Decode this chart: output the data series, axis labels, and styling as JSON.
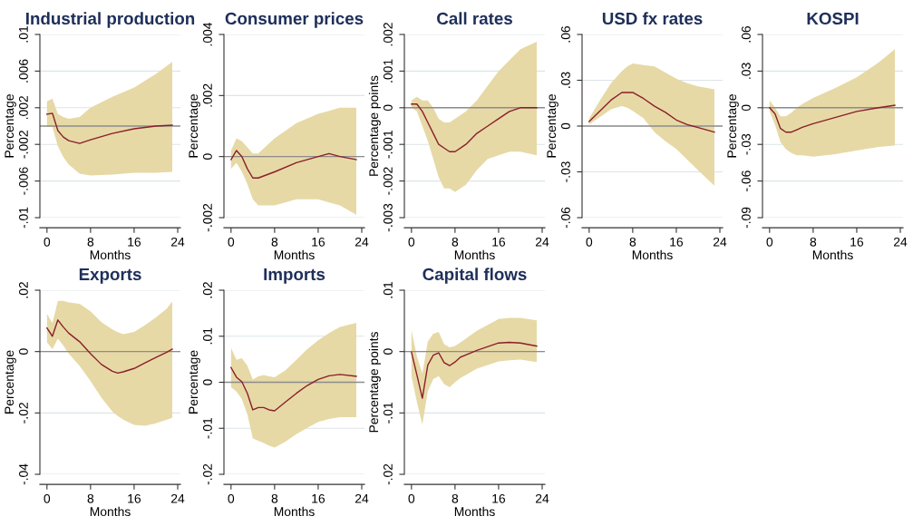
{
  "chart_data": [
    {
      "type": "line",
      "title": "Industrial production",
      "xlabel": "Months",
      "ylabel": "Percentage",
      "xlim": [
        -1.3,
        24.5
      ],
      "xticks": [
        0,
        8,
        16,
        24
      ],
      "ylim": [
        -0.01,
        0.01
      ],
      "yticks": [
        {
          "value": -0.01,
          "label": "-.01"
        },
        {
          "value": -0.006,
          "label": "-.006"
        },
        {
          "value": -0.002,
          "label": "-.002"
        },
        {
          "value": 0.002,
          "label": ".002"
        },
        {
          "value": 0.006,
          "label": ".006"
        },
        {
          "value": 0.01,
          "label": ".01"
        }
      ],
      "grid": "y",
      "ref_lines": [
        {
          "axis": "y",
          "value": 0,
          "color": "#8c8c8c"
        }
      ],
      "series": [
        {
          "color": "#8b1e2a",
          "x": [
            0,
            1,
            2,
            3,
            4,
            6,
            8,
            12,
            16,
            20,
            23
          ],
          "values": [
            0.0013,
            0.0014,
            -0.0005,
            -0.0012,
            -0.0016,
            -0.0019,
            -0.0015,
            -0.0008,
            -0.0003,
            0.0,
            0.0001
          ],
          "upper": [
            0.0027,
            0.003,
            0.0013,
            0.001,
            0.0008,
            0.001,
            0.002,
            0.0032,
            0.0042,
            0.0057,
            0.007
          ],
          "lower": [
            -0.0001,
            -0.0001,
            -0.0022,
            -0.0034,
            -0.0042,
            -0.0052,
            -0.0054,
            -0.0053,
            -0.0051,
            -0.0051,
            -0.005
          ]
        }
      ]
    },
    {
      "type": "line",
      "title": "Consumer prices",
      "xlabel": "Months",
      "ylabel": "Percentage",
      "xlim": [
        -1.3,
        24.5
      ],
      "xticks": [
        0,
        8,
        16,
        24
      ],
      "ylim": [
        -0.002,
        0.004
      ],
      "yticks": [
        {
          "value": -0.002,
          "label": "-.002"
        },
        {
          "value": 0,
          "label": "0"
        },
        {
          "value": 0.002,
          "label": ".002"
        },
        {
          "value": 0.004,
          "label": ".004"
        }
      ],
      "grid": "y",
      "ref_lines": [
        {
          "axis": "y",
          "value": 0,
          "color": "#8c8c8c"
        }
      ],
      "series": [
        {
          "color": "#8b1e2a",
          "x": [
            0,
            1,
            2,
            3,
            4,
            5,
            8,
            12,
            16,
            18,
            20,
            23
          ],
          "values": [
            -0.0001,
            0.0002,
            0.0,
            -0.0004,
            -0.0007,
            -0.0007,
            -0.0005,
            -0.0002,
            0.0,
            0.0001,
            0.0,
            -0.0001
          ],
          "upper": [
            0.0002,
            0.0006,
            0.0005,
            0.0003,
            0.0001,
            0.0001,
            0.0006,
            0.0011,
            0.0014,
            0.0015,
            0.0016,
            0.0016
          ],
          "lower": [
            -0.0004,
            -0.0002,
            -0.0005,
            -0.0009,
            -0.0014,
            -0.0016,
            -0.0016,
            -0.0014,
            -0.0014,
            -0.0015,
            -0.0016,
            -0.0019
          ]
        }
      ]
    },
    {
      "type": "line",
      "title": "Call rates",
      "xlabel": "Months",
      "ylabel": "Percentage points",
      "xlim": [
        -1.3,
        24.5
      ],
      "xticks": [
        0,
        8,
        16,
        24
      ],
      "ylim": [
        -0.003,
        0.002
      ],
      "yticks": [
        {
          "value": -0.003,
          "label": "-.003"
        },
        {
          "value": -0.002,
          "label": "-.002"
        },
        {
          "value": -0.001,
          "label": "-.001"
        },
        {
          "value": 0,
          "label": "0"
        },
        {
          "value": 0.001,
          "label": ".001"
        },
        {
          "value": 0.002,
          "label": ".002"
        }
      ],
      "grid": "y",
      "ref_lines": [
        {
          "axis": "y",
          "value": 0,
          "color": "#8c8c8c"
        }
      ],
      "series": [
        {
          "color": "#8b1e2a",
          "x": [
            0,
            1,
            2,
            3,
            4,
            5,
            6,
            7,
            8,
            10,
            12,
            14,
            16,
            18,
            20,
            23
          ],
          "values": [
            0.0001,
            0.0001,
            -0.0001,
            -0.0004,
            -0.0007,
            -0.001,
            -0.0011,
            -0.0012,
            -0.0012,
            -0.001,
            -0.0007,
            -0.0005,
            -0.0003,
            -0.0001,
            0.0,
            0.0
          ],
          "upper": [
            0.0002,
            0.0003,
            0.0002,
            0.0002,
            0.0,
            -0.0003,
            -0.0004,
            -0.0004,
            -0.0003,
            -0.0001,
            0.0002,
            0.0006,
            0.001,
            0.0013,
            0.0016,
            0.0018
          ],
          "lower": [
            0.0,
            -0.0001,
            -0.0005,
            -0.0009,
            -0.0014,
            -0.0019,
            -0.0022,
            -0.0022,
            -0.0023,
            -0.0021,
            -0.0017,
            -0.0014,
            -0.0013,
            -0.0012,
            -0.0012,
            -0.0013
          ]
        }
      ]
    },
    {
      "type": "line",
      "title": "USD fx rates",
      "xlabel": "Months",
      "ylabel": "Percentage",
      "xlim": [
        -1.3,
        24.5
      ],
      "xticks": [
        0,
        8,
        16,
        24
      ],
      "ylim": [
        -0.06,
        0.06
      ],
      "yticks": [
        {
          "value": -0.06,
          "label": "-.06"
        },
        {
          "value": -0.03,
          "label": "-.03"
        },
        {
          "value": 0,
          "label": "0"
        },
        {
          "value": 0.03,
          "label": ".03"
        },
        {
          "value": 0.06,
          "label": ".06"
        }
      ],
      "grid": "y",
      "ref_lines": [
        {
          "axis": "y",
          "value": 0,
          "color": "#8c8c8c"
        }
      ],
      "series": [
        {
          "color": "#8b1e2a",
          "x": [
            0,
            2,
            4,
            6,
            7,
            8,
            10,
            12,
            14,
            16,
            18,
            20,
            23
          ],
          "values": [
            0.003,
            0.01,
            0.017,
            0.022,
            0.022,
            0.022,
            0.018,
            0.013,
            0.009,
            0.004,
            0.001,
            -0.001,
            -0.004
          ],
          "upper": [
            0.005,
            0.017,
            0.028,
            0.036,
            0.039,
            0.041,
            0.04,
            0.039,
            0.035,
            0.031,
            0.028,
            0.026,
            0.024
          ],
          "lower": [
            0.001,
            0.006,
            0.011,
            0.013,
            0.012,
            0.01,
            0.005,
            -0.004,
            -0.01,
            -0.015,
            -0.022,
            -0.029,
            -0.039
          ]
        }
      ]
    },
    {
      "type": "line",
      "title": "KOSPI",
      "xlabel": "Months",
      "ylabel": "Percentage",
      "xlim": [
        -1.3,
        24.5
      ],
      "xticks": [
        0,
        8,
        16,
        24
      ],
      "ylim": [
        -0.09,
        0.06
      ],
      "yticks": [
        {
          "value": -0.09,
          "label": "-.09"
        },
        {
          "value": -0.06,
          "label": "-.06"
        },
        {
          "value": -0.03,
          "label": "-.03"
        },
        {
          "value": 0,
          "label": "0"
        },
        {
          "value": 0.03,
          "label": ".03"
        },
        {
          "value": 0.06,
          "label": ".06"
        }
      ],
      "grid": "y",
      "ref_lines": [
        {
          "axis": "y",
          "value": 0,
          "color": "#8c8c8c"
        }
      ],
      "series": [
        {
          "color": "#8b1e2a",
          "x": [
            0,
            1,
            2,
            3,
            4,
            5,
            6,
            8,
            12,
            16,
            20,
            23
          ],
          "values": [
            0.0,
            -0.005,
            -0.017,
            -0.02,
            -0.02,
            -0.018,
            -0.016,
            -0.013,
            -0.008,
            -0.003,
            0.0,
            0.002
          ],
          "upper": [
            0.006,
            0.0,
            -0.007,
            -0.007,
            -0.004,
            0.0,
            0.003,
            0.008,
            0.016,
            0.025,
            0.037,
            0.048
          ],
          "lower": [
            -0.003,
            -0.014,
            -0.028,
            -0.034,
            -0.037,
            -0.039,
            -0.039,
            -0.04,
            -0.038,
            -0.035,
            -0.032,
            -0.031
          ]
        }
      ]
    },
    {
      "type": "line",
      "title": "Exports",
      "xlabel": "Months",
      "ylabel": "Percentage",
      "xlim": [
        -1.3,
        24.5
      ],
      "xticks": [
        0,
        8,
        16,
        24
      ],
      "ylim": [
        -0.04,
        0.02
      ],
      "yticks": [
        {
          "value": -0.04,
          "label": "-.04"
        },
        {
          "value": -0.02,
          "label": "-.02"
        },
        {
          "value": 0,
          "label": "0"
        },
        {
          "value": 0.02,
          "label": ".02"
        }
      ],
      "grid": "y",
      "ref_lines": [
        {
          "axis": "y",
          "value": 0,
          "color": "#8c8c8c"
        }
      ],
      "series": [
        {
          "color": "#8b1e2a",
          "x": [
            0,
            1,
            2,
            3,
            4,
            6,
            8,
            10,
            12,
            13,
            14,
            16,
            18,
            20,
            22,
            23
          ],
          "values": [
            0.0077,
            0.005,
            0.0103,
            0.008,
            0.006,
            0.0032,
            -0.0007,
            -0.0042,
            -0.0064,
            -0.007,
            -0.0066,
            -0.0055,
            -0.0037,
            -0.0019,
            -0.0002,
            0.0008
          ],
          "upper": [
            0.0123,
            0.0093,
            0.0165,
            0.0165,
            0.016,
            0.0156,
            0.0131,
            0.0096,
            0.0072,
            0.0063,
            0.0057,
            0.0064,
            0.0086,
            0.0111,
            0.014,
            0.0163
          ],
          "lower": [
            0.003,
            0.0008,
            0.0042,
            0.002,
            -0.0007,
            -0.0047,
            -0.0096,
            -0.015,
            -0.0195,
            -0.021,
            -0.0222,
            -0.0239,
            -0.0242,
            -0.0234,
            -0.0222,
            -0.0216
          ]
        }
      ]
    },
    {
      "type": "line",
      "title": "Imports",
      "xlabel": "Months",
      "ylabel": "Percentage",
      "xlim": [
        -1.3,
        24.5
      ],
      "xticks": [
        0,
        8,
        16,
        24
      ],
      "ylim": [
        -0.02,
        0.02
      ],
      "yticks": [
        {
          "value": -0.02,
          "label": "-.02"
        },
        {
          "value": -0.01,
          "label": "-.01"
        },
        {
          "value": 0,
          "label": "0"
        },
        {
          "value": 0.01,
          "label": ".01"
        },
        {
          "value": 0.02,
          "label": ".02"
        }
      ],
      "grid": "y",
      "ref_lines": [
        {
          "axis": "y",
          "value": 0,
          "color": "#8c8c8c"
        }
      ],
      "series": [
        {
          "color": "#8b1e2a",
          "x": [
            0,
            1,
            2,
            3,
            4,
            5,
            6,
            7,
            8,
            10,
            12,
            14,
            16,
            18,
            20,
            23
          ],
          "values": [
            0.0032,
            0.0011,
            0.0001,
            -0.0024,
            -0.006,
            -0.0055,
            -0.0055,
            -0.006,
            -0.0062,
            -0.0043,
            -0.0024,
            -0.0007,
            0.0006,
            0.0014,
            0.0017,
            0.0013
          ],
          "upper": [
            0.0075,
            0.0049,
            0.0052,
            0.0036,
            0.0006,
            0.0013,
            0.0016,
            0.0013,
            0.0011,
            0.0026,
            0.0049,
            0.0072,
            0.0091,
            0.0107,
            0.012,
            0.0129
          ],
          "lower": [
            -0.0011,
            -0.002,
            -0.0037,
            -0.007,
            -0.0122,
            -0.0127,
            -0.0132,
            -0.0138,
            -0.0142,
            -0.0129,
            -0.0113,
            -0.0099,
            -0.0086,
            -0.008,
            -0.0076,
            -0.0076
          ]
        }
      ]
    },
    {
      "type": "line",
      "title": "Capital flows",
      "xlabel": "Months",
      "ylabel": "Percentage points",
      "xlim": [
        -1.3,
        24.5
      ],
      "xticks": [
        0,
        8,
        16,
        24
      ],
      "ylim": [
        -0.02,
        0.01
      ],
      "yticks": [
        {
          "value": -0.02,
          "label": "-.02"
        },
        {
          "value": -0.01,
          "label": "-.01"
        },
        {
          "value": 0,
          "label": "0"
        },
        {
          "value": 0.01,
          "label": ".01"
        }
      ],
      "grid": "y",
      "ref_lines": [
        {
          "axis": "y",
          "value": 0,
          "color": "#8c8c8c"
        }
      ],
      "series": [
        {
          "color": "#8b1e2a",
          "x": [
            0,
            1,
            2,
            3,
            4,
            5,
            6,
            7,
            8,
            9,
            12,
            16,
            18,
            20,
            23
          ],
          "values": [
            -0.0001,
            -0.0038,
            -0.0076,
            -0.0022,
            -0.0006,
            -0.0002,
            -0.0018,
            -0.0023,
            -0.0017,
            -0.0009,
            0.0002,
            0.0014,
            0.0015,
            0.0014,
            0.0009
          ],
          "upper": [
            0.0035,
            -0.0008,
            -0.0036,
            0.0016,
            0.0029,
            0.0032,
            0.0012,
            0.0007,
            0.0009,
            0.0015,
            0.0034,
            0.0053,
            0.0055,
            0.0055,
            0.0051
          ],
          "lower": [
            -0.004,
            -0.0082,
            -0.0119,
            -0.0065,
            -0.0045,
            -0.004,
            -0.0053,
            -0.0058,
            -0.005,
            -0.0043,
            -0.0028,
            -0.0016,
            -0.0014,
            -0.0013,
            -0.0017
          ]
        }
      ]
    }
  ]
}
